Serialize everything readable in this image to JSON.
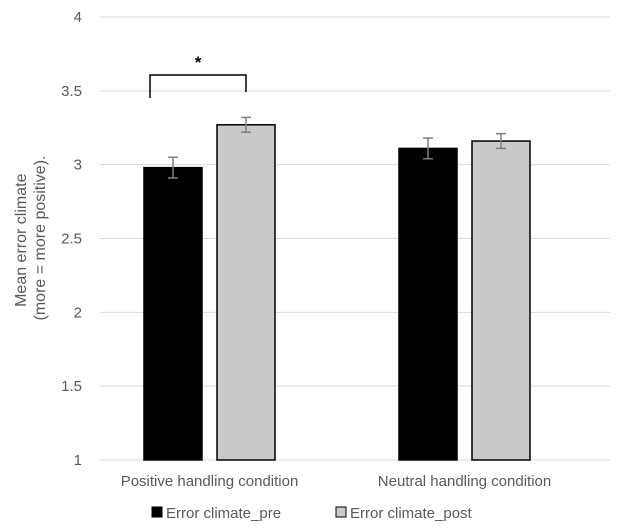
{
  "chart_data": {
    "type": "bar",
    "categories": [
      "Positive handling condition",
      "Neutral handling condition"
    ],
    "series": [
      {
        "name": "Error climate_pre",
        "values": [
          2.98,
          3.11
        ],
        "errors": [
          0.07,
          0.07
        ],
        "color": "#000000"
      },
      {
        "name": "Error climate_post",
        "values": [
          3.27,
          3.16
        ],
        "errors": [
          0.05,
          0.05
        ],
        "color": "#c9c9c9"
      }
    ],
    "ylabel": [
      "Mean error climate",
      "(more = more positive)."
    ],
    "ylim": [
      1,
      4
    ],
    "yticks": [
      "1",
      "1.5",
      "2",
      "2.5",
      "3",
      "3.5",
      "4"
    ],
    "ytick_values": [
      1,
      1.5,
      2,
      2.5,
      3,
      3.5,
      4
    ],
    "grid": true,
    "legend_position": "bottom",
    "annotation": {
      "text": "*",
      "category_index": 0
    },
    "colors": {
      "grid": "#d9d9d9",
      "text": "#595959",
      "error_bar": "#7f7f7f"
    }
  }
}
